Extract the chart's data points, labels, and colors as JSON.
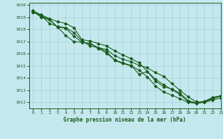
{
  "title": "Graphe pression niveau de la mer (hPa)",
  "xlim": [
    -0.5,
    23
  ],
  "ylim": [
    1011.5,
    1020.2
  ],
  "yticks": [
    1012,
    1013,
    1014,
    1015,
    1016,
    1017,
    1018,
    1019,
    1020
  ],
  "xticks": [
    0,
    1,
    2,
    3,
    4,
    5,
    6,
    7,
    8,
    9,
    10,
    11,
    12,
    13,
    14,
    15,
    16,
    17,
    18,
    19,
    20,
    21,
    22,
    23
  ],
  "bg_color": "#c5e8ef",
  "grid_color": "#a8cdd8",
  "line_color": "#1a5c1a",
  "line1": [
    1019.5,
    1019.1,
    1018.85,
    1018.2,
    1018.1,
    1017.45,
    1016.95,
    1016.85,
    1016.5,
    1016.2,
    1015.45,
    1015.2,
    1015.0,
    1014.65,
    1014.1,
    1013.35,
    1012.85,
    1012.6,
    1012.3,
    1012.0,
    1011.92,
    1012.0,
    1012.3,
    1012.5
  ],
  "line2": [
    1019.5,
    1019.0,
    1018.8,
    1018.2,
    1017.5,
    1017.0,
    1016.95,
    1016.85,
    1016.45,
    1016.05,
    1015.5,
    1015.25,
    1015.05,
    1014.3,
    1014.55,
    1013.75,
    1013.3,
    1013.1,
    1012.75,
    1012.15,
    1011.95,
    1012.1,
    1012.4,
    1012.55
  ],
  "line3": [
    1019.4,
    1019.15,
    1018.5,
    1018.25,
    1018.15,
    1017.75,
    1017.05,
    1016.65,
    1016.5,
    1016.35,
    1015.85,
    1015.55,
    1015.35,
    1015.05,
    1014.85,
    1014.45,
    1014.15,
    1013.55,
    1013.0,
    1012.45,
    1012.05,
    1012.0,
    1012.2,
    1012.35
  ],
  "line4": [
    1019.55,
    1019.2,
    1018.9,
    1018.65,
    1018.5,
    1018.15,
    1017.15,
    1017.05,
    1016.85,
    1016.65,
    1016.25,
    1015.9,
    1015.6,
    1015.25,
    1014.55,
    1013.9,
    1013.45,
    1013.05,
    1012.65,
    1012.05,
    1011.95,
    1012.05,
    1012.35,
    1012.55
  ]
}
